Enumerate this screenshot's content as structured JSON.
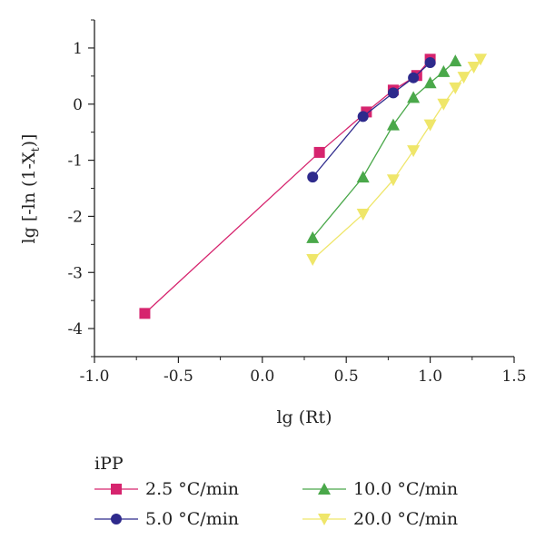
{
  "chart_data": {
    "type": "line",
    "xlabel": "lg (Rt)",
    "ylabel_main": "lg [-ln (1-X",
    "ylabel_sub": "t",
    "ylabel_end": ")]",
    "xlim": [
      -1.0,
      1.5
    ],
    "ylim": [
      -4.5,
      1.5
    ],
    "x_ticks": [
      -1.0,
      -0.5,
      0.0,
      0.5,
      1.0,
      1.5
    ],
    "x_tick_labels": [
      "-1.0",
      "-0.5",
      "0.0",
      "0.5",
      "1.0",
      "1.5"
    ],
    "y_ticks": [
      1,
      0,
      -1,
      -2,
      -3,
      -4
    ],
    "y_tick_labels": [
      "1",
      "0",
      "-1",
      "-2",
      "-3",
      "-4"
    ],
    "grid": false,
    "legend_title": "iPP",
    "legend_position": "bottom",
    "series": [
      {
        "name": "2.5 °C/min",
        "marker": "square",
        "color": "#d6246e",
        "x": [
          -0.7,
          0.34,
          0.62,
          0.78,
          0.92,
          1.0
        ],
        "y": [
          -3.73,
          -0.86,
          -0.14,
          0.25,
          0.51,
          0.8
        ]
      },
      {
        "name": "5.0 °C/min",
        "marker": "circle",
        "color": "#2e2a8c",
        "x": [
          0.3,
          0.6,
          0.78,
          0.9,
          1.0
        ],
        "y": [
          -1.3,
          -0.22,
          0.2,
          0.47,
          0.74
        ]
      },
      {
        "name": "10.0 °C/min",
        "marker": "triangle-up",
        "color": "#4aa84a",
        "x": [
          0.3,
          0.6,
          0.78,
          0.9,
          1.0,
          1.08,
          1.15
        ],
        "y": [
          -2.38,
          -1.3,
          -0.37,
          0.12,
          0.38,
          0.58,
          0.77
        ]
      },
      {
        "name": "20.0 °C/min",
        "marker": "triangle-down",
        "color": "#efe66a",
        "x": [
          0.3,
          0.6,
          0.78,
          0.9,
          1.0,
          1.08,
          1.15,
          1.2,
          1.26,
          1.3
        ],
        "y": [
          -2.77,
          -1.96,
          -1.35,
          -0.83,
          -0.37,
          0.0,
          0.29,
          0.48,
          0.66,
          0.8
        ]
      }
    ]
  }
}
